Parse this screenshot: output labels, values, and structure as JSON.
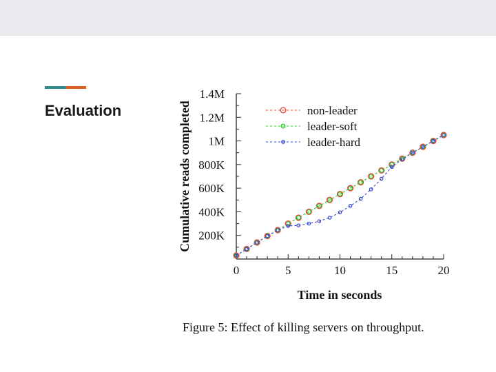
{
  "slide": {
    "title": "Evaluation",
    "accent_colors": [
      "#2a8c8c",
      "#d9601a"
    ],
    "caption": "Figure 5: Effect of killing servers on throughput."
  },
  "chart_data": {
    "type": "line",
    "title": "",
    "xlabel": "Time in seconds",
    "ylabel": "Cumulative reads completed",
    "xlim": [
      0,
      20
    ],
    "ylim": [
      0,
      1400000
    ],
    "xticks": [
      0,
      5,
      10,
      15,
      20
    ],
    "xtick_labels": [
      "0",
      "5",
      "10",
      "15",
      "20"
    ],
    "yticks": [
      200000,
      400000,
      600000,
      800000,
      1000000,
      1200000,
      1400000
    ],
    "ytick_labels": [
      "200K",
      "400K",
      "600K",
      "800K",
      "1M",
      "1.2M",
      "1.4M"
    ],
    "grid": false,
    "legend_position": "top-right",
    "x": [
      0,
      1,
      2,
      3,
      4,
      5,
      6,
      7,
      8,
      9,
      10,
      11,
      12,
      13,
      14,
      15,
      16,
      17,
      18,
      19,
      20
    ],
    "series": [
      {
        "name": "non-leader",
        "color": "#e8453c",
        "marker": "circle-large",
        "values": [
          30000,
          85000,
          140000,
          195000,
          245000,
          300000,
          350000,
          400000,
          450000,
          500000,
          550000,
          600000,
          650000,
          700000,
          750000,
          800000,
          850000,
          900000,
          950000,
          1000000,
          1050000
        ]
      },
      {
        "name": "leader-soft",
        "color": "#33cc33",
        "marker": "circle-medium",
        "values": [
          30000,
          85000,
          140000,
          195000,
          245000,
          300000,
          350000,
          400000,
          450000,
          500000,
          550000,
          600000,
          650000,
          700000,
          750000,
          800000,
          850000,
          900000,
          950000,
          1000000,
          1050000
        ]
      },
      {
        "name": "leader-hard",
        "color": "#3344cc",
        "marker": "circle-small",
        "values": [
          30000,
          85000,
          140000,
          195000,
          245000,
          280000,
          285000,
          300000,
          320000,
          350000,
          395000,
          450000,
          510000,
          590000,
          680000,
          780000,
          845000,
          900000,
          950000,
          1000000,
          1050000
        ]
      }
    ]
  }
}
